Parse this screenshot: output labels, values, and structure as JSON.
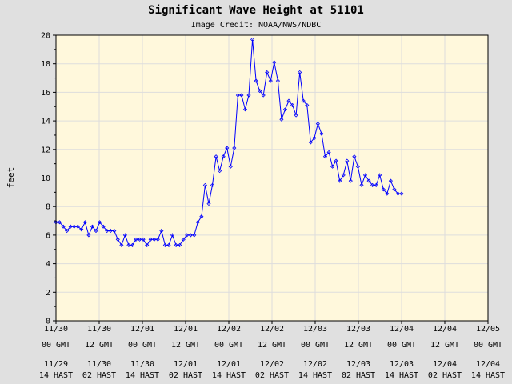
{
  "chart_data": {
    "type": "line",
    "title": "Significant Wave Height at 51101",
    "subtitle": "Image Credit: NOAA/NWS/NDBC",
    "ylabel": "feet",
    "xlabel": "",
    "ylim": [
      0,
      20
    ],
    "yticks": [
      0,
      2,
      4,
      6,
      8,
      10,
      12,
      14,
      16,
      18,
      20
    ],
    "xlim": [
      "11/30 00 GMT",
      "12/05 00 GMT"
    ],
    "x_tick_labels": [
      {
        "gmt": "11/30\n00 GMT",
        "local": "11/29\n14 HAST"
      },
      {
        "gmt": "11/30\n12 GMT",
        "local": "11/30\n02 HAST"
      },
      {
        "gmt": "12/01\n00 GMT",
        "local": "11/30\n14 HAST"
      },
      {
        "gmt": "12/01\n12 GMT",
        "local": "12/01\n02 HAST"
      },
      {
        "gmt": "12/02\n00 GMT",
        "local": "12/01\n14 HAST"
      },
      {
        "gmt": "12/02\n12 GMT",
        "local": "12/02\n02 HAST"
      },
      {
        "gmt": "12/03\n00 GMT",
        "local": "12/02\n14 HAST"
      },
      {
        "gmt": "12/03\n12 GMT",
        "local": "12/03\n02 HAST"
      },
      {
        "gmt": "12/04\n00 GMT",
        "local": "12/03\n14 HAST"
      },
      {
        "gmt": "12/04\n12 GMT",
        "local": "12/04\n02 HAST"
      },
      {
        "gmt": "12/05\n00 GMT",
        "local": "12/04\n14 HAST"
      }
    ],
    "grid": true,
    "colors": {
      "line": "#0000ff",
      "plot_bg": "#fff8dc",
      "grid": "#dddddd",
      "page_bg": "#e0e0e0"
    },
    "series": [
      {
        "values": [
          6.9,
          6.9,
          6.6,
          6.3,
          6.6,
          6.6,
          6.6,
          6.4,
          6.9,
          6.0,
          6.6,
          6.3,
          6.9,
          6.6,
          6.3,
          6.3,
          6.3,
          5.7,
          5.3,
          6.0,
          5.3,
          5.3,
          5.7,
          5.7,
          5.7,
          5.3,
          5.7,
          5.7,
          5.7,
          6.3,
          5.3,
          5.3,
          6.0,
          5.3,
          5.3,
          5.7,
          6.0,
          6.0,
          6.0,
          6.9,
          7.3,
          9.5,
          8.2,
          9.5,
          11.5,
          10.5,
          11.5,
          12.1,
          10.8,
          12.1,
          15.8,
          15.8,
          14.8,
          15.8,
          19.7,
          16.8,
          16.1,
          15.8,
          17.4,
          16.8,
          18.1,
          16.8,
          14.1,
          14.8,
          15.4,
          15.1,
          14.4,
          17.4,
          15.4,
          15.1,
          12.5,
          12.8,
          13.8,
          13.1,
          11.5,
          11.8,
          10.8,
          11.2,
          9.8,
          10.2,
          11.2,
          9.8,
          11.5,
          10.8,
          9.5,
          10.2,
          9.8,
          9.5,
          9.5,
          10.2,
          9.2,
          8.9,
          9.8,
          9.2,
          8.9,
          8.9
        ]
      }
    ]
  }
}
